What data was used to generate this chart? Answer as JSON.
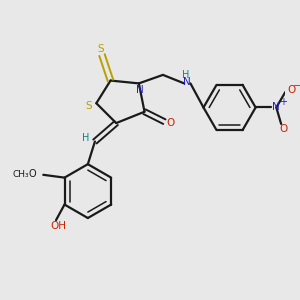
{
  "bg_color": "#e8e8e8",
  "bond_color": "#1a1a1a",
  "S_color": "#b8a000",
  "N_color": "#2222bb",
  "O_color": "#cc2200",
  "H_color": "#008888",
  "figsize": [
    3.0,
    3.0
  ],
  "dpi": 100,
  "xlim": [
    0,
    10
  ],
  "ylim": [
    0,
    10
  ]
}
